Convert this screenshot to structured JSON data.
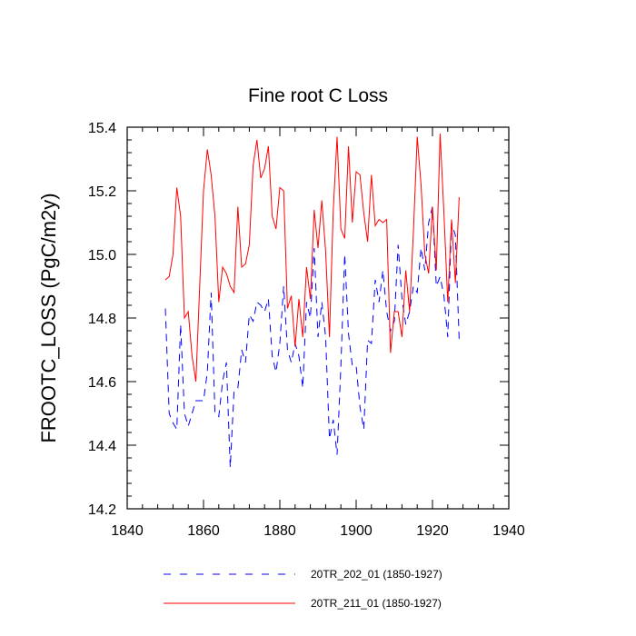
{
  "chart_data": {
    "type": "line",
    "title": "Fine root C Loss",
    "xlabel": "",
    "ylabel": "FROOTC_LOSS  (PgC/m2y)",
    "xlim": [
      1840,
      1940
    ],
    "ylim": [
      14.2,
      15.4
    ],
    "x_ticks": [
      1840,
      1860,
      1880,
      1900,
      1920,
      1940
    ],
    "y_ticks": [
      14.2,
      14.4,
      14.6,
      14.8,
      15.0,
      15.2,
      15.4
    ],
    "x_tick_labels": [
      "1840",
      "1860",
      "1880",
      "1900",
      "1920",
      "1940"
    ],
    "y_tick_labels": [
      "14.2",
      "14.4",
      "14.6",
      "14.8",
      "15.0",
      "15.2",
      "15.4"
    ],
    "x": [
      1850,
      1851,
      1852,
      1853,
      1854,
      1855,
      1856,
      1857,
      1858,
      1859,
      1860,
      1861,
      1862,
      1863,
      1864,
      1865,
      1866,
      1867,
      1868,
      1869,
      1870,
      1871,
      1872,
      1873,
      1874,
      1875,
      1876,
      1877,
      1878,
      1879,
      1880,
      1881,
      1882,
      1883,
      1884,
      1885,
      1886,
      1887,
      1888,
      1889,
      1890,
      1891,
      1892,
      1893,
      1894,
      1895,
      1896,
      1897,
      1898,
      1899,
      1900,
      1901,
      1902,
      1903,
      1904,
      1905,
      1906,
      1907,
      1908,
      1909,
      1910,
      1911,
      1912,
      1913,
      1914,
      1915,
      1916,
      1917,
      1918,
      1919,
      1920,
      1921,
      1922,
      1923,
      1924,
      1925,
      1926,
      1927
    ],
    "series": [
      {
        "name": "20TR_202_01 (1850-1927)",
        "color": "#0000ff",
        "dash": "dashed",
        "values": [
          14.83,
          14.5,
          14.47,
          14.45,
          14.78,
          14.5,
          14.46,
          14.5,
          14.54,
          14.54,
          14.54,
          14.63,
          14.88,
          14.5,
          14.49,
          14.6,
          14.66,
          14.33,
          14.57,
          14.58,
          14.7,
          14.66,
          14.81,
          14.79,
          14.85,
          14.84,
          14.82,
          14.86,
          14.68,
          14.63,
          14.72,
          14.9,
          14.7,
          14.66,
          14.72,
          14.68,
          14.58,
          14.85,
          14.8,
          15.02,
          14.74,
          14.85,
          14.74,
          14.42,
          14.48,
          14.37,
          14.65,
          15.0,
          14.75,
          14.65,
          14.65,
          14.52,
          14.45,
          14.73,
          14.72,
          14.92,
          14.85,
          14.95,
          14.82,
          14.76,
          14.79,
          15.03,
          14.86,
          14.78,
          14.82,
          14.9,
          14.88,
          15.02,
          14.95,
          15.1,
          15.15,
          14.9,
          14.93,
          14.87,
          14.74,
          15.1,
          15.06,
          14.73
        ]
      },
      {
        "name": "20TR_211_01 (1850-1927)",
        "color": "#ff0000",
        "dash": "solid",
        "values": [
          14.92,
          14.93,
          15.0,
          15.21,
          15.12,
          14.8,
          14.82,
          14.68,
          14.6,
          14.9,
          15.2,
          15.33,
          15.25,
          15.12,
          14.85,
          14.96,
          14.94,
          14.9,
          14.88,
          15.15,
          14.96,
          14.97,
          15.03,
          15.28,
          15.36,
          15.24,
          15.27,
          15.34,
          15.12,
          15.08,
          15.21,
          15.2,
          14.83,
          14.87,
          14.71,
          14.86,
          14.74,
          14.96,
          14.86,
          15.14,
          15.02,
          15.17,
          15.01,
          14.74,
          15.14,
          15.37,
          15.08,
          15.05,
          15.34,
          15.1,
          15.26,
          15.25,
          15.13,
          15.04,
          15.25,
          15.09,
          15.11,
          15.1,
          15.11,
          14.69,
          14.82,
          14.82,
          14.74,
          14.95,
          14.82,
          15.07,
          15.37,
          15.22,
          15.0,
          14.94,
          15.15,
          14.95,
          15.38,
          15.13,
          14.85,
          15.11,
          14.91,
          15.18
        ]
      }
    ],
    "legend_position": "bottom"
  }
}
